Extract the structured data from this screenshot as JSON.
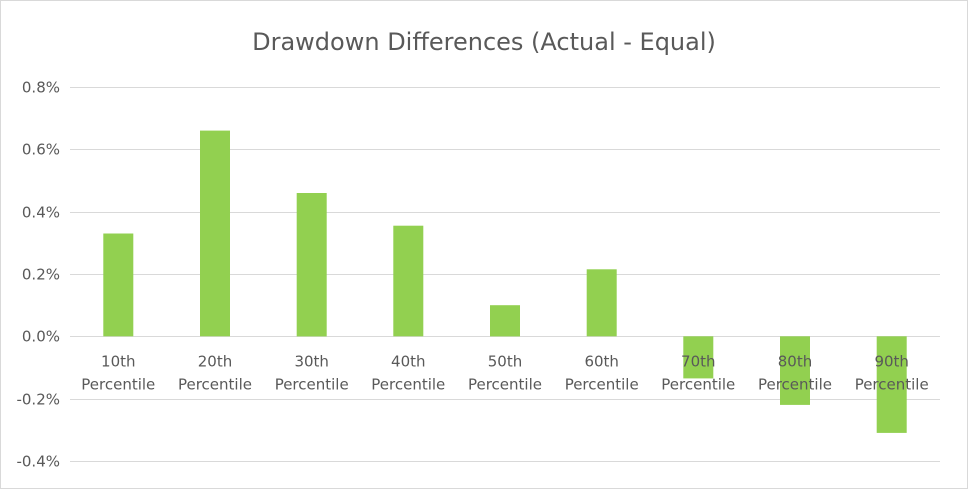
{
  "chart_data": {
    "type": "bar",
    "title": "Drawdown Differences (Actual - Equal)",
    "xlabel": "",
    "ylabel": "",
    "categories": [
      [
        "10th",
        "Percentile"
      ],
      [
        "20th",
        "Percentile"
      ],
      [
        "30th",
        "Percentile"
      ],
      [
        "40th",
        "Percentile"
      ],
      [
        "50th",
        "Percentile"
      ],
      [
        "60th",
        "Percentile"
      ],
      [
        "70th",
        "Percentile"
      ],
      [
        "80th",
        "Percentile"
      ],
      [
        "90th",
        "Percentile"
      ]
    ],
    "values": [
      0.0033,
      0.0066,
      0.0046,
      0.00355,
      0.001,
      0.00215,
      -0.00135,
      -0.0022,
      -0.0031
    ],
    "ylim": [
      -0.004,
      0.008
    ],
    "yticks": [
      "0.8%",
      "0.6%",
      "0.4%",
      "0.2%",
      "0.0%",
      "-0.2%",
      "-0.4%"
    ],
    "ytick_values": [
      0.008,
      0.006,
      0.004,
      0.002,
      0.0,
      -0.002,
      -0.004
    ],
    "grid": true,
    "legend": "none",
    "colors": {
      "bar": "#92d050",
      "text": "#595959",
      "grid": "#d9d9d9"
    }
  }
}
